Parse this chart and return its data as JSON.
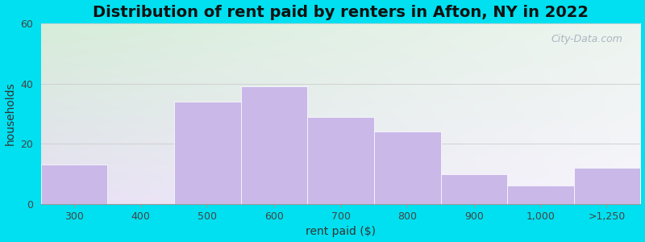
{
  "title": "Distribution of rent paid by renters in Afton, NY in 2022",
  "xlabel": "rent paid ($)",
  "ylabel": "households",
  "tick_labels": [
    "300",
    "400",
    "500",
    "600",
    "700",
    "800",
    "900",
    "1,000",
    ">1,250"
  ],
  "values": [
    13,
    0,
    34,
    39,
    29,
    24,
    10,
    6,
    12
  ],
  "bar_color": "#c9b8e8",
  "bar_edge_color": "#ffffff",
  "ylim": [
    0,
    60
  ],
  "yticks": [
    0,
    20,
    40,
    60
  ],
  "bg_color_topleft": "#d6eeda",
  "bg_color_topright": "#eef5f0",
  "bg_color_bottomleft": "#e8e0f5",
  "bg_color_bottomright": "#f8f5fe",
  "outer_bg": "#00e0f0",
  "title_fontsize": 14,
  "axis_label_fontsize": 10,
  "tick_fontsize": 9,
  "watermark_text": "City-Data.com"
}
